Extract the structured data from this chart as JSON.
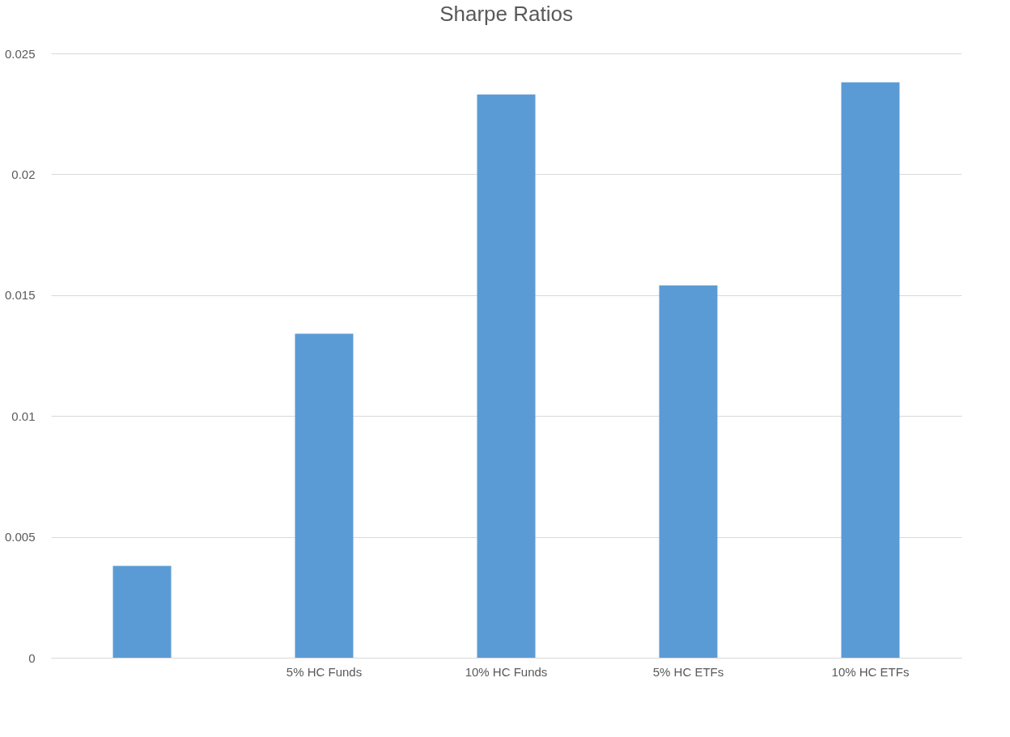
{
  "chart_data": {
    "type": "bar",
    "title": "Sharpe Ratios",
    "categories": [
      null,
      "5% HC Funds",
      "10% HC Funds",
      "5% HC ETFs",
      "10% HC ETFs"
    ],
    "values": [
      0.0038,
      0.0134,
      0.0233,
      0.0154,
      0.0238
    ],
    "color": "#5b9bd5",
    "ylim": [
      0,
      0.025
    ],
    "yticks": [
      0,
      0.005,
      0.01,
      0.015,
      0.02,
      0.025
    ],
    "grid": "y"
  }
}
